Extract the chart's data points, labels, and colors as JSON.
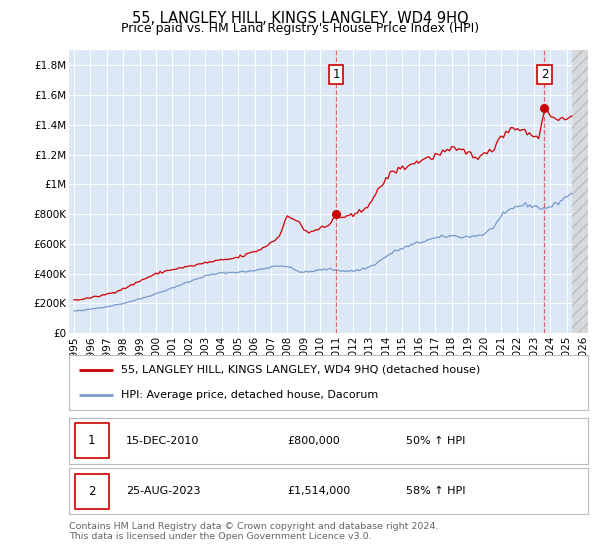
{
  "title": "55, LANGLEY HILL, KINGS LANGLEY, WD4 9HQ",
  "subtitle": "Price paid vs. HM Land Registry's House Price Index (HPI)",
  "background_color": "#ffffff",
  "plot_bg_color": "#dce8f5",
  "grid_color": "#ffffff",
  "hatch_bg_color": "#cccccc",
  "ylim": [
    0,
    1900000
  ],
  "yticks": [
    0,
    200000,
    400000,
    600000,
    800000,
    1000000,
    1200000,
    1400000,
    1600000,
    1800000
  ],
  "ytick_labels": [
    "£0",
    "£200K",
    "£400K",
    "£600K",
    "£800K",
    "£1M",
    "£1.2M",
    "£1.4M",
    "£1.6M",
    "£1.8M"
  ],
  "xlim_start": 1994.7,
  "xlim_end": 2026.3,
  "data_end": 2025.3,
  "xticks": [
    1995,
    1996,
    1997,
    1998,
    1999,
    2000,
    2001,
    2002,
    2003,
    2004,
    2005,
    2006,
    2007,
    2008,
    2009,
    2010,
    2011,
    2012,
    2013,
    2014,
    2015,
    2016,
    2017,
    2018,
    2019,
    2020,
    2021,
    2022,
    2023,
    2024,
    2025,
    2026
  ],
  "marker1_x": 2010.96,
  "marker1_y": 800000,
  "marker2_x": 2023.65,
  "marker2_y": 1514000,
  "vline1_x": 2010.96,
  "vline2_x": 2023.65,
  "red_line_color": "#cc0000",
  "blue_line_color": "#7799cc",
  "marker_color": "#cc0000",
  "vline_color": "#dd4444",
  "legend_label_red": "55, LANGLEY HILL, KINGS LANGLEY, WD4 9HQ (detached house)",
  "legend_label_blue": "HPI: Average price, detached house, Dacorum",
  "annotation1_label": "1",
  "annotation2_label": "2",
  "table_row1": [
    "1",
    "15-DEC-2010",
    "£800,000",
    "50% ↑ HPI"
  ],
  "table_row2": [
    "2",
    "25-AUG-2023",
    "£1,514,000",
    "58% ↑ HPI"
  ],
  "footer": "Contains HM Land Registry data © Crown copyright and database right 2024.\nThis data is licensed under the Open Government Licence v3.0.",
  "title_fontsize": 10.5,
  "subtitle_fontsize": 9,
  "tick_fontsize": 7.5,
  "legend_fontsize": 8,
  "table_fontsize": 8,
  "footer_fontsize": 6.8
}
